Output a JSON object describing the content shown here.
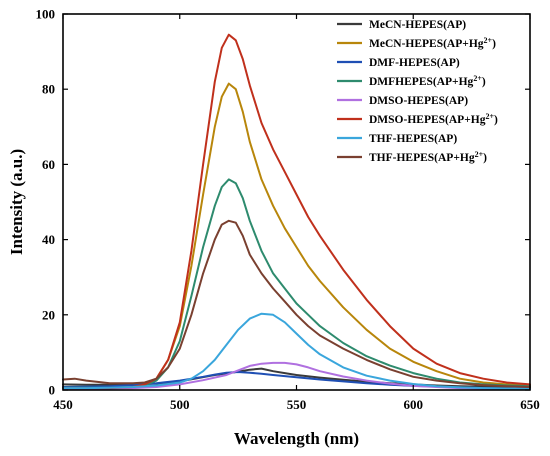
{
  "chart_data": {
    "type": "line",
    "xlabel": "Wavelength (nm)",
    "ylabel": "Intensity (a.u.)",
    "xlim": [
      450,
      650
    ],
    "ylim": [
      0,
      100
    ],
    "xticks": [
      450,
      500,
      550,
      600,
      650
    ],
    "yticks": [
      0,
      20,
      40,
      60,
      80,
      100
    ],
    "grid": false,
    "legend_position": "top-right",
    "series": [
      {
        "name": "MeCN-HEPES(AP)",
        "name_main": "MeCN-HEPES(AP)",
        "name_sup": "",
        "name_tail": "",
        "color": "#3a3a3a",
        "x": [
          450,
          460,
          470,
          480,
          490,
          500,
          510,
          515,
          520,
          525,
          530,
          535,
          540,
          545,
          550,
          560,
          570,
          580,
          590,
          600,
          610,
          620,
          630,
          640,
          650
        ],
        "y": [
          1.5,
          1.4,
          1.4,
          1.5,
          1.7,
          2.3,
          3.4,
          4.0,
          4.4,
          4.9,
          5.4,
          5.7,
          5.0,
          4.5,
          4.0,
          3.3,
          2.7,
          2.2,
          1.8,
          1.5,
          1.2,
          1.0,
          0.9,
          0.8,
          0.7
        ]
      },
      {
        "name": "MeCN-HEPES(AP+Hg2+)",
        "name_main": "MeCN-HEPES(AP+Hg",
        "name_sup": "2+",
        "name_tail": ")",
        "color": "#b8860b",
        "x": [
          450,
          470,
          480,
          485,
          490,
          495,
          500,
          505,
          510,
          515,
          518,
          521,
          524,
          527,
          530,
          535,
          540,
          545,
          550,
          555,
          560,
          570,
          580,
          590,
          600,
          610,
          620,
          630,
          640,
          650
        ],
        "y": [
          0.5,
          0.5,
          0.8,
          1.5,
          3,
          8,
          17,
          33,
          52,
          70,
          78,
          81.5,
          80,
          74,
          66,
          56,
          49,
          43,
          38,
          33,
          29,
          22,
          16,
          11,
          7.5,
          5,
          3,
          2,
          1.5,
          1.2
        ]
      },
      {
        "name": "DMF-HEPES(AP)",
        "name_main": "DMF-HEPES(AP)",
        "name_sup": "",
        "name_tail": "",
        "color": "#1f4fb4",
        "x": [
          450,
          460,
          470,
          480,
          490,
          500,
          510,
          515,
          520,
          525,
          530,
          535,
          540,
          550,
          560,
          570,
          580,
          590,
          600,
          610,
          620,
          630,
          640,
          650
        ],
        "y": [
          0.8,
          0.9,
          1.0,
          1.3,
          1.8,
          2.5,
          3.5,
          4.1,
          4.6,
          4.8,
          4.6,
          4.3,
          4.0,
          3.4,
          2.8,
          2.3,
          1.8,
          1.4,
          1.1,
          0.9,
          0.7,
          0.5,
          0.4,
          0.3
        ]
      },
      {
        "name": "DMFHEPES(AP+Hg2+)",
        "name_main": "DMFHEPES(AP+Hg",
        "name_sup": "2+",
        "name_tail": ")",
        "color": "#2e8b6e",
        "x": [
          450,
          470,
          480,
          485,
          490,
          495,
          500,
          505,
          510,
          515,
          518,
          521,
          524,
          527,
          530,
          535,
          540,
          545,
          550,
          555,
          560,
          570,
          580,
          590,
          600,
          610,
          620,
          630,
          640,
          650
        ],
        "y": [
          0.6,
          0.6,
          0.8,
          1.2,
          2.5,
          6,
          13,
          25,
          38,
          49,
          54,
          56,
          55,
          51,
          45,
          37,
          31,
          27,
          23,
          20,
          17,
          12.5,
          9,
          6.5,
          4.5,
          3,
          2,
          1.5,
          1.2,
          1
        ]
      },
      {
        "name": "DMSO-HEPES(AP)",
        "name_main": "DMSO-HEPES(AP)",
        "name_sup": "",
        "name_tail": "",
        "color": "#b070e0",
        "x": [
          450,
          460,
          470,
          480,
          490,
          500,
          510,
          520,
          525,
          530,
          535,
          540,
          545,
          550,
          555,
          560,
          570,
          580,
          590,
          600,
          610,
          620,
          630,
          640,
          650
        ],
        "y": [
          0.3,
          0.3,
          0.4,
          0.5,
          0.8,
          1.5,
          2.6,
          4.0,
          5.2,
          6.4,
          7.0,
          7.2,
          7.2,
          6.8,
          6.0,
          5.0,
          3.6,
          2.5,
          1.7,
          1.1,
          0.8,
          0.5,
          0.4,
          0.3,
          0.3
        ]
      },
      {
        "name": "DMSO-HEPES(AP+Hg2+)",
        "name_main": "DMSO-HEPES(AP+Hg",
        "name_sup": "2+",
        "name_tail": ")",
        "color": "#c0301c",
        "x": [
          450,
          470,
          480,
          485,
          490,
          495,
          500,
          505,
          510,
          515,
          518,
          521,
          524,
          527,
          530,
          535,
          540,
          545,
          550,
          555,
          560,
          570,
          580,
          590,
          600,
          610,
          620,
          630,
          640,
          650
        ],
        "y": [
          0.5,
          0.5,
          0.8,
          1.5,
          3,
          8,
          18,
          37,
          60,
          82,
          91,
          94.5,
          93,
          88,
          81,
          71,
          64,
          58,
          52,
          46,
          41,
          32,
          24,
          17,
          11,
          7,
          4.5,
          3,
          2,
          1.5
        ]
      },
      {
        "name": "THF-HEPES(AP)",
        "name_main": "THF-HEPES(AP)",
        "name_sup": "",
        "name_tail": "",
        "color": "#3aa6dc",
        "x": [
          450,
          460,
          470,
          480,
          490,
          500,
          505,
          510,
          515,
          520,
          525,
          530,
          535,
          540,
          545,
          550,
          555,
          560,
          570,
          580,
          590,
          600,
          610,
          620,
          630,
          640,
          650
        ],
        "y": [
          0.5,
          0.5,
          0.6,
          0.8,
          1.2,
          2.0,
          3.0,
          5.0,
          8.0,
          12,
          16,
          19,
          20.3,
          20,
          18,
          15,
          12,
          9.5,
          6.0,
          3.8,
          2.5,
          1.6,
          1.0,
          0.7,
          0.5,
          0.4,
          0.3
        ]
      },
      {
        "name": "THF-HEPES(AP+Hg2+)",
        "name_main": "THF-HEPES(AP+Hg",
        "name_sup": "2+",
        "name_tail": ")",
        "color": "#7a4030",
        "x": [
          450,
          455,
          460,
          470,
          480,
          485,
          490,
          495,
          500,
          505,
          510,
          515,
          518,
          521,
          524,
          527,
          530,
          535,
          540,
          545,
          550,
          555,
          560,
          570,
          580,
          590,
          600,
          610,
          620,
          630,
          640,
          650
        ],
        "y": [
          2.8,
          3.0,
          2.5,
          1.8,
          1.8,
          2.0,
          3,
          6,
          11,
          20,
          31,
          40,
          44,
          45,
          44.5,
          41,
          36,
          31,
          27,
          23.5,
          20,
          17,
          14.5,
          11,
          8,
          5.5,
          3.5,
          2.5,
          1.8,
          1.3,
          1,
          0.8
        ]
      }
    ]
  }
}
